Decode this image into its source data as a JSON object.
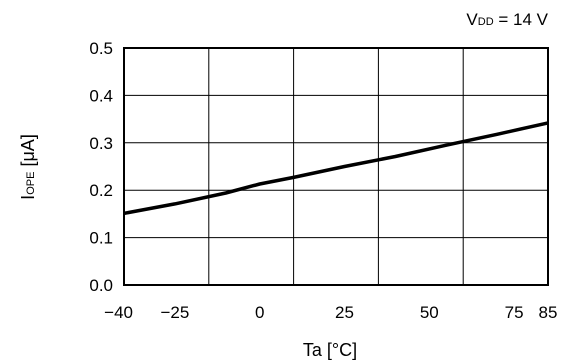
{
  "chart_data": {
    "type": "line",
    "condition": {
      "main": "V",
      "sub": "DD",
      "rest": " = 14 V"
    },
    "xlabel": "Ta [°C]",
    "ylabel": {
      "main": "I",
      "sub": "OPE",
      "rest": " [μA]"
    },
    "xlim": [
      -40,
      85
    ],
    "ylim": [
      0,
      0.5
    ],
    "xticks": [
      -40,
      -25,
      0,
      25,
      50,
      75,
      85
    ],
    "xtick_labels": [
      "−40",
      "−25",
      "0",
      "25",
      "50",
      "75",
      "85"
    ],
    "xgrid": [
      -40,
      -15,
      10,
      35,
      60,
      85
    ],
    "yticks": [
      0.0,
      0.1,
      0.2,
      0.3,
      0.4,
      0.5
    ],
    "ytick_labels": [
      "0.0",
      "0.1",
      "0.2",
      "0.3",
      "0.4",
      "0.5"
    ],
    "grid": true,
    "series": [
      {
        "x": [
          -40,
          -25,
          -10,
          0,
          10,
          25,
          40,
          55,
          70,
          85
        ],
        "values": [
          0.151,
          0.171,
          0.194,
          0.213,
          0.227,
          0.25,
          0.271,
          0.295,
          0.318,
          0.342
        ]
      }
    ]
  }
}
